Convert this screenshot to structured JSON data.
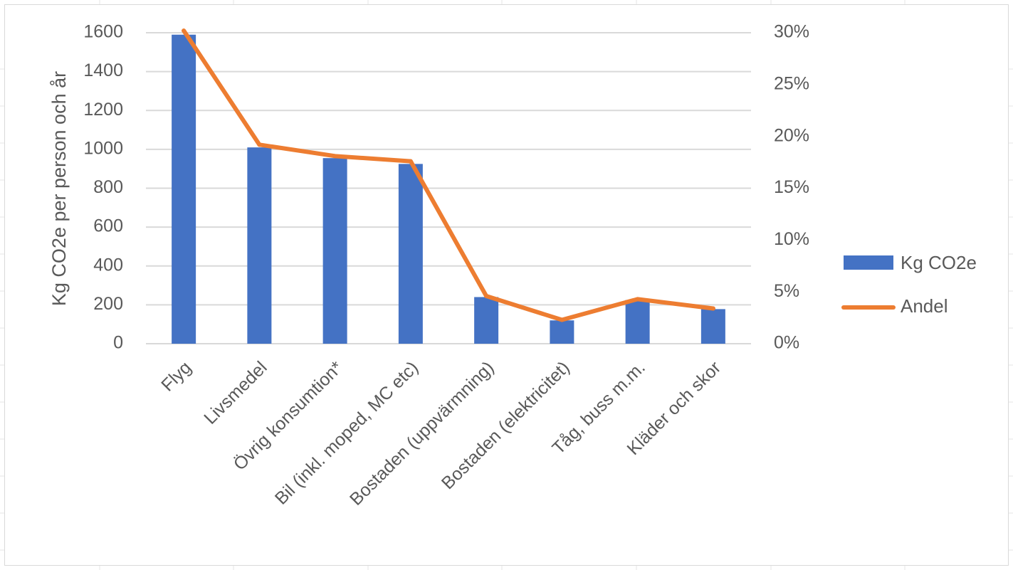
{
  "chart_data": {
    "type": "bar",
    "categories": [
      "Flyg",
      "Livsmedel",
      "Övrig konsumtion*",
      "Bil (inkl. moped, MC etc)",
      "Bostaden (uppvärmning)",
      "Bostaden (elektricitet)",
      "Tåg, buss m.m.",
      "Kläder och skor"
    ],
    "series": [
      {
        "name": "Kg CO2e",
        "type": "bar",
        "axis": "left",
        "color": "#4472C4",
        "values": [
          1590,
          1010,
          955,
          925,
          240,
          120,
          225,
          178
        ]
      },
      {
        "name": "Andel",
        "type": "line",
        "axis": "right",
        "color": "#ED7D31",
        "values": [
          30.2,
          19.2,
          18.1,
          17.6,
          4.6,
          2.3,
          4.3,
          3.4
        ]
      }
    ],
    "ylabel": "Kg CO2e per person och år",
    "ylim": [
      0,
      1600
    ],
    "yticks": [
      "0",
      "200",
      "400",
      "600",
      "800",
      "1000",
      "1200",
      "1400",
      "1600"
    ],
    "y2lim": [
      0,
      30
    ],
    "y2ticks": [
      "0%",
      "5%",
      "10%",
      "15%",
      "20%",
      "25%",
      "30%"
    ],
    "grid": true,
    "legend_position": "right"
  }
}
